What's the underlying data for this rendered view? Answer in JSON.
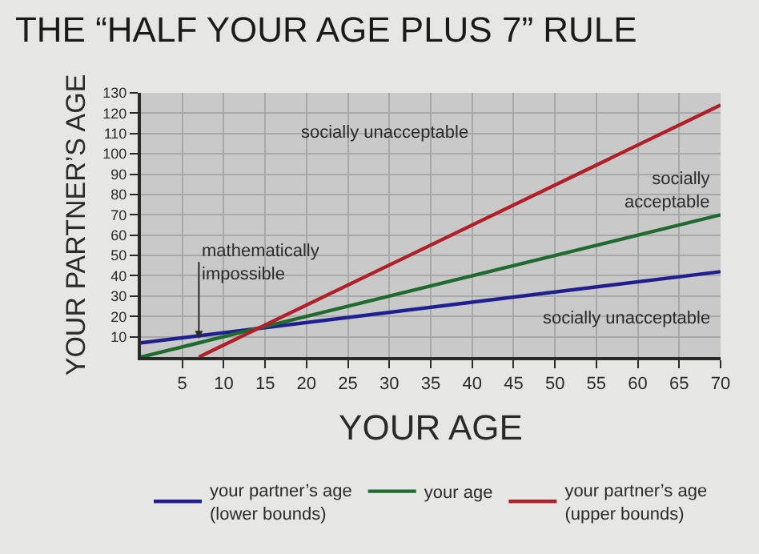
{
  "chart_data": {
    "type": "line",
    "title": "THE “HALF YOUR AGE PLUS 7” RULE",
    "xlabel": "YOUR AGE",
    "ylabel": "YOUR PARTNER’S AGE",
    "series": [
      {
        "name": "your partner’s age\n(lower bounds)",
        "color": "#1f1f8f",
        "x": [
          0,
          70
        ],
        "values": [
          7,
          42
        ]
      },
      {
        "name": "your age",
        "color": "#1f6b2f",
        "x": [
          0,
          70
        ],
        "values": [
          0,
          70
        ]
      },
      {
        "name": "your partner’s age\n(upper bounds)",
        "color": "#b0202a",
        "x": [
          7,
          70
        ],
        "values": [
          0,
          124
        ]
      }
    ],
    "xlim": [
      0,
      70
    ],
    "xticks": [
      5,
      10,
      15,
      20,
      25,
      30,
      35,
      40,
      45,
      50,
      55,
      60,
      65,
      70
    ],
    "ylim": [
      0,
      130
    ],
    "yticks": [
      10,
      20,
      30,
      40,
      50,
      60,
      70,
      80,
      90,
      100,
      110,
      120,
      130
    ],
    "annotations": [
      "socially unacceptable",
      "socially\nacceptable",
      "socially unacceptable",
      {
        "text": "mathematically\nimpossible",
        "x": 7,
        "y": 9
      }
    ],
    "grid": true,
    "legend": "bottom",
    "marker": "none",
    "line_style": "solid"
  }
}
